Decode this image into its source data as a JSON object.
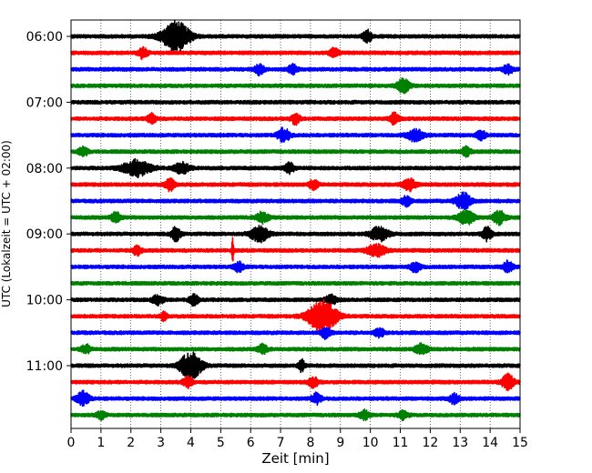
{
  "chart_data": {
    "type": "line",
    "title": "",
    "xlabel": "Zeit  [min]",
    "ylabel": "UTC (Lokalzeit = UTC + 02:00)",
    "xlim": [
      0,
      15
    ],
    "x_ticks": [
      0,
      1,
      2,
      3,
      4,
      5,
      6,
      7,
      8,
      9,
      10,
      11,
      12,
      13,
      14,
      15
    ],
    "y_tick_labels": [
      "06:00",
      "07:00",
      "08:00",
      "09:00",
      "10:00",
      "11:00"
    ],
    "rows_per_hour": 4,
    "minutes_per_row": 15,
    "grid": "vertical dotted lines at each minute",
    "color_cycle": [
      "#000000",
      "#ff0000",
      "#0000ff",
      "#008000"
    ],
    "traces": [
      {
        "start": "06:00",
        "events": [
          {
            "t": 3.5,
            "amp": 1.0,
            "width": 0.9
          },
          {
            "t": 9.9,
            "amp": 0.4,
            "width": 0.3
          }
        ]
      },
      {
        "start": "06:15",
        "events": [
          {
            "t": 2.4,
            "amp": 0.35,
            "width": 0.3
          },
          {
            "t": 8.8,
            "amp": 0.3,
            "width": 0.3
          }
        ]
      },
      {
        "start": "06:30",
        "events": [
          {
            "t": 6.3,
            "amp": 0.35,
            "width": 0.3
          },
          {
            "t": 7.4,
            "amp": 0.3,
            "width": 0.3
          },
          {
            "t": 14.6,
            "amp": 0.35,
            "width": 0.3
          }
        ]
      },
      {
        "start": "06:45",
        "events": [
          {
            "t": 11.1,
            "amp": 0.45,
            "width": 0.4
          }
        ]
      },
      {
        "start": "07:00",
        "events": []
      },
      {
        "start": "07:15",
        "events": [
          {
            "t": 2.7,
            "amp": 0.3,
            "width": 0.3
          },
          {
            "t": 7.5,
            "amp": 0.35,
            "width": 0.3
          },
          {
            "t": 10.8,
            "amp": 0.35,
            "width": 0.3
          }
        ]
      },
      {
        "start": "07:30",
        "events": [
          {
            "t": 7.1,
            "amp": 0.45,
            "width": 0.4
          },
          {
            "t": 11.5,
            "amp": 0.4,
            "width": 0.5
          },
          {
            "t": 13.7,
            "amp": 0.3,
            "width": 0.3
          }
        ]
      },
      {
        "start": "07:45",
        "events": [
          {
            "t": 0.4,
            "amp": 0.3,
            "width": 0.3
          },
          {
            "t": 13.2,
            "amp": 0.3,
            "width": 0.3
          }
        ]
      },
      {
        "start": "08:00",
        "events": [
          {
            "t": 2.2,
            "amp": 0.55,
            "width": 0.9
          },
          {
            "t": 3.7,
            "amp": 0.35,
            "width": 0.5
          },
          {
            "t": 7.3,
            "amp": 0.35,
            "width": 0.3
          }
        ]
      },
      {
        "start": "08:15",
        "events": [
          {
            "t": 3.3,
            "amp": 0.4,
            "width": 0.3
          },
          {
            "t": 8.1,
            "amp": 0.3,
            "width": 0.3
          },
          {
            "t": 11.3,
            "amp": 0.4,
            "width": 0.4
          }
        ]
      },
      {
        "start": "08:30",
        "events": [
          {
            "t": 11.2,
            "amp": 0.3,
            "width": 0.3
          },
          {
            "t": 13.1,
            "amp": 0.55,
            "width": 0.5
          }
        ]
      },
      {
        "start": "08:45",
        "events": [
          {
            "t": 1.5,
            "amp": 0.35,
            "width": 0.3
          },
          {
            "t": 6.4,
            "amp": 0.35,
            "width": 0.4
          },
          {
            "t": 13.2,
            "amp": 0.45,
            "width": 0.5
          },
          {
            "t": 14.3,
            "amp": 0.45,
            "width": 0.4
          }
        ]
      },
      {
        "start": "09:00",
        "events": [
          {
            "t": 3.5,
            "amp": 0.45,
            "width": 0.3
          },
          {
            "t": 6.3,
            "amp": 0.5,
            "width": 0.6
          },
          {
            "t": 10.3,
            "amp": 0.45,
            "width": 0.6
          },
          {
            "t": 13.9,
            "amp": 0.45,
            "width": 0.3
          }
        ]
      },
      {
        "start": "09:15",
        "events": [
          {
            "t": 2.2,
            "amp": 0.3,
            "width": 0.3
          },
          {
            "t": 5.4,
            "amp": 1.1,
            "width": 0.06
          },
          {
            "t": 10.2,
            "amp": 0.4,
            "width": 0.6
          }
        ]
      },
      {
        "start": "09:30",
        "events": [
          {
            "t": 5.6,
            "amp": 0.3,
            "width": 0.3
          },
          {
            "t": 11.5,
            "amp": 0.35,
            "width": 0.3
          },
          {
            "t": 14.6,
            "amp": 0.4,
            "width": 0.3
          }
        ]
      },
      {
        "start": "09:45",
        "events": []
      },
      {
        "start": "10:00",
        "events": [
          {
            "t": 2.9,
            "amp": 0.3,
            "width": 0.4
          },
          {
            "t": 4.1,
            "amp": 0.35,
            "width": 0.3
          },
          {
            "t": 8.7,
            "amp": 0.3,
            "width": 0.4
          }
        ]
      },
      {
        "start": "10:15",
        "events": [
          {
            "t": 3.1,
            "amp": 0.3,
            "width": 0.2
          },
          {
            "t": 8.4,
            "amp": 1.1,
            "width": 0.9
          }
        ]
      },
      {
        "start": "10:30",
        "events": [
          {
            "t": 8.5,
            "amp": 0.35,
            "width": 0.3
          },
          {
            "t": 10.3,
            "amp": 0.3,
            "width": 0.3
          }
        ]
      },
      {
        "start": "10:45",
        "events": [
          {
            "t": 0.5,
            "amp": 0.3,
            "width": 0.3
          },
          {
            "t": 6.4,
            "amp": 0.3,
            "width": 0.3
          },
          {
            "t": 11.7,
            "amp": 0.35,
            "width": 0.4
          }
        ]
      },
      {
        "start": "11:00",
        "events": [
          {
            "t": 4.0,
            "amp": 0.9,
            "width": 0.7
          },
          {
            "t": 7.7,
            "amp": 0.4,
            "width": 0.2
          }
        ]
      },
      {
        "start": "11:15",
        "events": [
          {
            "t": 3.9,
            "amp": 0.35,
            "width": 0.3
          },
          {
            "t": 8.1,
            "amp": 0.35,
            "width": 0.3
          },
          {
            "t": 14.6,
            "amp": 0.5,
            "width": 0.4
          }
        ]
      },
      {
        "start": "11:30",
        "events": [
          {
            "t": 0.4,
            "amp": 0.45,
            "width": 0.4
          },
          {
            "t": 8.2,
            "amp": 0.35,
            "width": 0.3
          },
          {
            "t": 12.8,
            "amp": 0.35,
            "width": 0.3
          }
        ]
      },
      {
        "start": "11:45",
        "events": [
          {
            "t": 1.0,
            "amp": 0.25,
            "width": 0.3
          },
          {
            "t": 9.8,
            "amp": 0.3,
            "width": 0.3
          },
          {
            "t": 11.1,
            "amp": 0.3,
            "width": 0.3
          }
        ]
      }
    ]
  }
}
